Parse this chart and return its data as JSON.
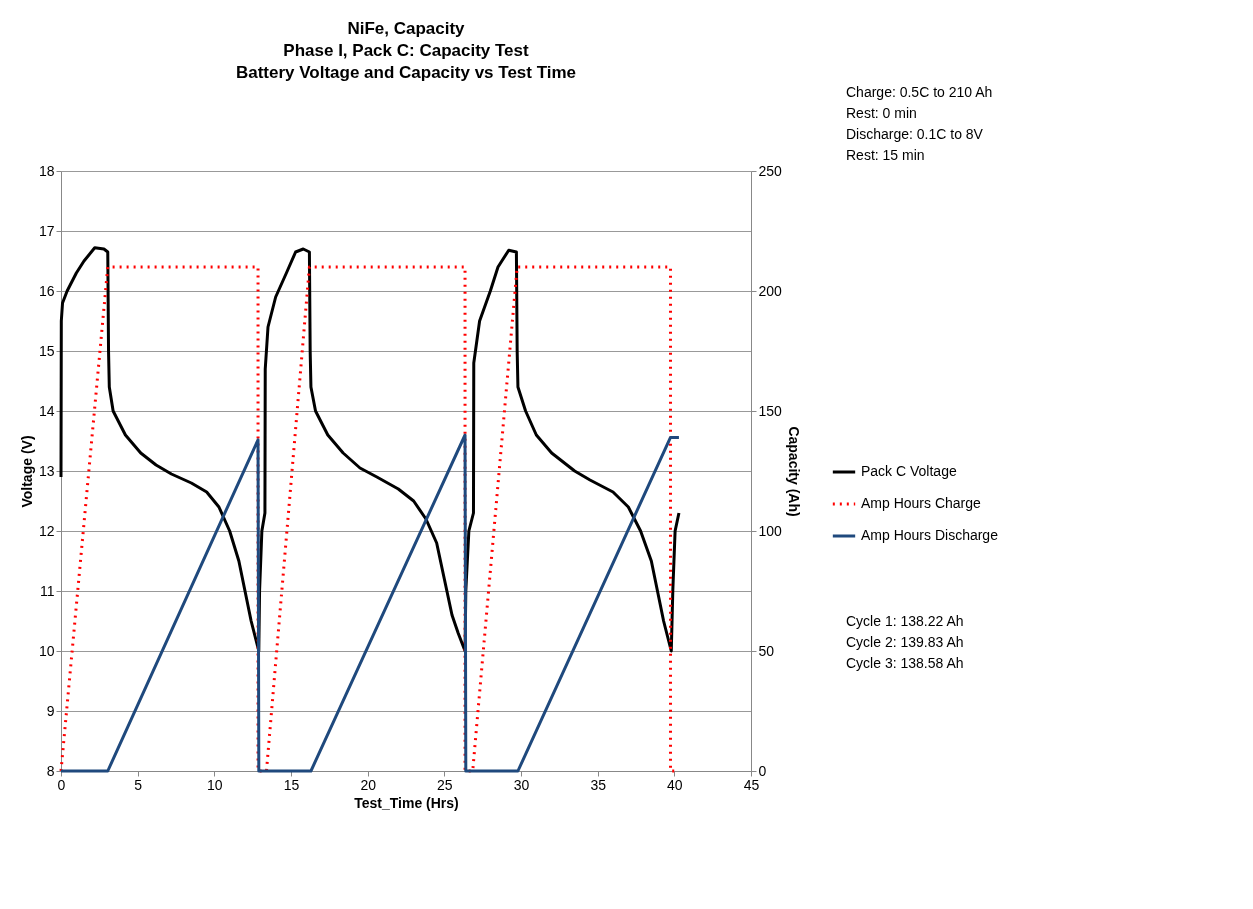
{
  "chart_data": {
    "type": "line",
    "title": "NiFe, Capacity\nPhase I, Pack C:  Capacity Test\nBattery Voltage and Capacity vs Test Time",
    "xlabel": "Test_Time (Hrs)",
    "ylabel": "Voltage (V)",
    "y2label": "Capacity (Ah)",
    "xlim": [
      0,
      45
    ],
    "xticks": [
      0,
      5,
      10,
      15,
      20,
      25,
      30,
      35,
      40,
      45
    ],
    "ylim": [
      8,
      18
    ],
    "yticks": [
      8,
      9,
      10,
      11,
      12,
      13,
      14,
      15,
      16,
      17,
      18
    ],
    "y2lim": [
      0,
      250
    ],
    "y2ticks": [
      0,
      50,
      100,
      150,
      200,
      250
    ],
    "grid": "y",
    "legend": "right",
    "marker": "none",
    "annotations": [
      "Charge:  0.5C to 210 Ah\nRest:  0 min\nDischarge:  0.1C to 8V\nRest:  15 min",
      "Cycle 1:  138.22 Ah\nCycle 2:  139.83 Ah\nCycle 3:  138.58 Ah"
    ],
    "series": [
      {
        "name": "Pack C Voltage",
        "color": "#000000",
        "line_style": "solid",
        "x": [
          0,
          0.02,
          0.1,
          0.4,
          1,
          1.5,
          2.2,
          2.8,
          3.05,
          3.1,
          3.15,
          3.4,
          4.2,
          5.2,
          6.2,
          7.2,
          8.5,
          9.5,
          10.3,
          11,
          11.6,
          12,
          12.4,
          12.9,
          12.95,
          13.1,
          13.3,
          13.32,
          13.5,
          14,
          14.7,
          15.3,
          15.8,
          16.2,
          16.25,
          16.3,
          16.6,
          17.4,
          18.4,
          19.5,
          20.6,
          22,
          23,
          23.8,
          24.5,
          25,
          25.5,
          25.9,
          26.35,
          26.4,
          26.6,
          26.9,
          26.92,
          27.3,
          28,
          28.5,
          29.2,
          29.7,
          29.75,
          29.8,
          30.3,
          31,
          32,
          33.5,
          34.5,
          36,
          37,
          37.8,
          38.5,
          39.3,
          39.8,
          39.9,
          40.05,
          40.3
        ],
        "values": [
          12.9,
          15.5,
          15.8,
          16.0,
          16.3,
          16.5,
          16.72,
          16.7,
          16.65,
          15.0,
          14.4,
          14.0,
          13.6,
          13.3,
          13.1,
          12.95,
          12.8,
          12.65,
          12.4,
          12.0,
          11.5,
          11.0,
          10.5,
          10.0,
          11.0,
          12.0,
          12.3,
          14.7,
          15.4,
          15.9,
          16.3,
          16.65,
          16.7,
          16.65,
          15.0,
          14.4,
          14.0,
          13.6,
          13.3,
          13.05,
          12.9,
          12.7,
          12.5,
          12.2,
          11.8,
          11.2,
          10.6,
          10.3,
          10.0,
          11.0,
          12.0,
          12.3,
          14.8,
          15.5,
          16.0,
          16.4,
          16.68,
          16.65,
          15.0,
          14.4,
          14.0,
          13.6,
          13.3,
          13.0,
          12.85,
          12.65,
          12.4,
          12.0,
          11.5,
          10.5,
          10.0,
          11.0,
          12.0,
          12.3
        ]
      },
      {
        "name": "Amp Hours Charge",
        "color": "#ff0000",
        "line_style": "dotted",
        "axis": "y2",
        "x": [
          0,
          3.05,
          12.85,
          12.85,
          13.4,
          16.2,
          26.35,
          26.35,
          26.85,
          29.75,
          39.75,
          39.75,
          40.3
        ],
        "values": [
          0,
          210,
          210,
          0,
          0,
          210,
          210,
          0,
          0,
          210,
          210,
          0,
          0
        ]
      },
      {
        "name": "Amp Hours Discharge",
        "color": "#1f497d",
        "line_style": "solid",
        "axis": "y2",
        "x": [
          0,
          3.05,
          12.85,
          12.9,
          16.3,
          26.35,
          26.4,
          29.8,
          39.75,
          40.3
        ],
        "values": [
          0,
          0,
          138,
          0,
          0,
          140,
          0,
          0,
          139,
          139
        ]
      }
    ]
  }
}
